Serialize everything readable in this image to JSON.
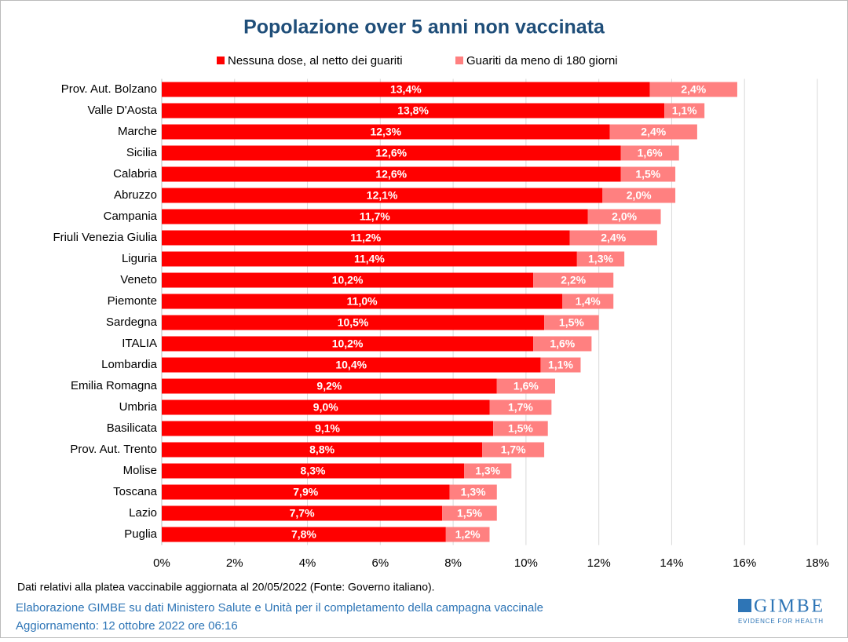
{
  "chart_data": {
    "type": "stacked-bar-horizontal",
    "title": "Popolazione over 5 anni non vaccinata",
    "categories": [
      "Prov. Aut. Bolzano",
      "Valle D'Aosta",
      "Marche",
      "Sicilia",
      "Calabria",
      "Abruzzo",
      "Campania",
      "Friuli Venezia Giulia",
      "Liguria",
      "Veneto",
      "Piemonte",
      "Sardegna",
      "ITALIA",
      "Lombardia",
      "Emilia Romagna",
      "Umbria",
      "Basilicata",
      "Prov. Aut. Trento",
      "Molise",
      "Toscana",
      "Lazio",
      "Puglia"
    ],
    "series": [
      {
        "name": "Nessuna dose, al netto dei guariti",
        "color": "#ff0000",
        "values": [
          13.4,
          13.8,
          12.3,
          12.6,
          12.6,
          12.1,
          11.7,
          11.2,
          11.4,
          10.2,
          11.0,
          10.5,
          10.2,
          10.4,
          9.2,
          9.0,
          9.1,
          8.8,
          8.3,
          7.9,
          7.7,
          7.8
        ],
        "value_labels": [
          "13,4%",
          "13,8%",
          "12,3%",
          "12,6%",
          "12,6%",
          "12,1%",
          "11,7%",
          "11,2%",
          "11,4%",
          "10,2%",
          "11,0%",
          "10,5%",
          "10,2%",
          "10,4%",
          "9,2%",
          "9,0%",
          "9,1%",
          "8,8%",
          "8,3%",
          "7,9%",
          "7,7%",
          "7,8%"
        ]
      },
      {
        "name": "Guariti da meno di 180 giorni",
        "color": "#ff8080",
        "values": [
          2.4,
          1.1,
          2.4,
          1.6,
          1.5,
          2.0,
          2.0,
          2.4,
          1.3,
          2.2,
          1.4,
          1.5,
          1.6,
          1.1,
          1.6,
          1.7,
          1.5,
          1.7,
          1.3,
          1.3,
          1.5,
          1.2
        ],
        "value_labels": [
          "2,4%",
          "1,1%",
          "2,4%",
          "1,6%",
          "1,5%",
          "2,0%",
          "2,0%",
          "2,4%",
          "1,3%",
          "2,2%",
          "1,4%",
          "1,5%",
          "1,6%",
          "1,1%",
          "1,6%",
          "1,7%",
          "1,5%",
          "1,7%",
          "1,3%",
          "1,3%",
          "1,5%",
          "1,2%"
        ]
      }
    ],
    "xlim": [
      0,
      18
    ],
    "xticks": [
      {
        "value": 0,
        "label": "0%"
      },
      {
        "value": 2,
        "label": "2%"
      },
      {
        "value": 4,
        "label": "4%"
      },
      {
        "value": 6,
        "label": "6%"
      },
      {
        "value": 8,
        "label": "8%"
      },
      {
        "value": 10,
        "label": "10%"
      },
      {
        "value": 12,
        "label": "12%"
      },
      {
        "value": 14,
        "label": "14%"
      },
      {
        "value": 16,
        "label": "16%"
      },
      {
        "value": 18,
        "label": "18%"
      }
    ],
    "grid": true,
    "footnotes": [
      "Dati relativi alla platea vaccinabile aggiornata al 20/05/2022 (Fonte: Governo italiano).",
      "Elaborazione GIMBE su dati Ministero Salute e Unità per il completamento della campagna vaccinale",
      "Aggiornamento: 12 ottobre 2022 ore 06:16"
    ]
  },
  "logo": {
    "name": "GIMBE",
    "tagline": "EVIDENCE FOR HEALTH"
  }
}
